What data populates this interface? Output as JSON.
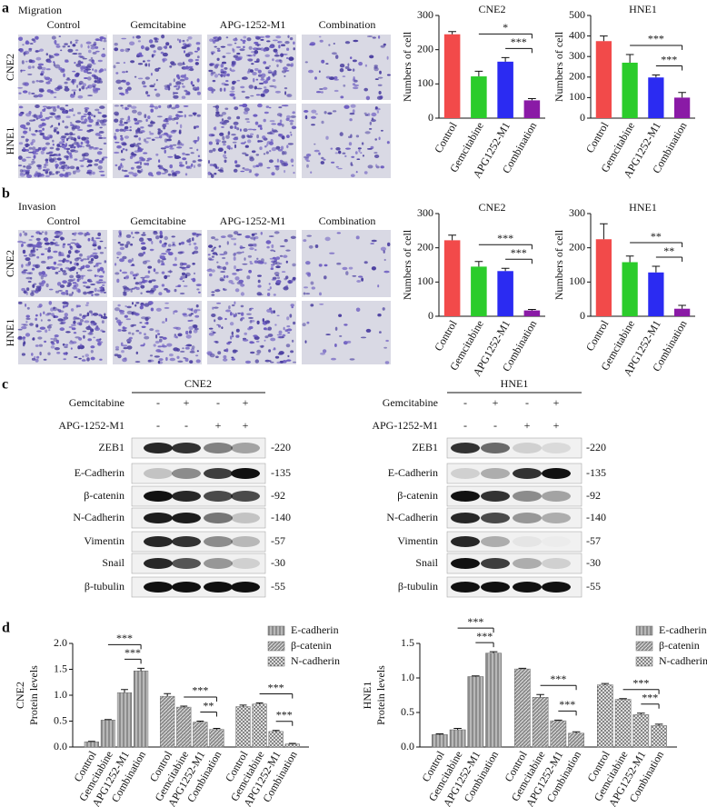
{
  "figure": {
    "panel_labels": [
      "a",
      "b",
      "c",
      "d"
    ],
    "migration": "Migration",
    "invasion": "Invasion",
    "image_columns": [
      "Control",
      "Gemcitabine",
      "APG-1252-M1",
      "Combination"
    ],
    "image_rows": [
      "CNE2",
      "HNE1"
    ],
    "blots": [
      {
        "title": "CNE2",
        "treatments": [
          {
            "name": "Gemcitabine",
            "signs": [
              "-",
              "+",
              "-",
              "+"
            ]
          },
          {
            "name": "APG-1252-M1",
            "signs": [
              "-",
              "-",
              "+",
              "+"
            ]
          }
        ],
        "proteins": [
          {
            "name": "ZEB1",
            "mw": "-220"
          },
          {
            "name": "E-Cadherin",
            "mw": "-135"
          },
          {
            "name": "β-catenin",
            "mw": "-92"
          },
          {
            "name": "N-Cadherin",
            "mw": "-140"
          },
          {
            "name": "Vimentin",
            "mw": "-57"
          },
          {
            "name": "Snail",
            "mw": "-30"
          },
          {
            "name": "β-tubulin",
            "mw": "-55"
          }
        ]
      },
      {
        "title": "HNE1",
        "treatments": [
          {
            "name": "Gemcitabine",
            "signs": [
              "-",
              "+",
              "-",
              "+"
            ]
          },
          {
            "name": "APG-1252-M1",
            "signs": [
              "-",
              "-",
              "+",
              "+"
            ]
          }
        ],
        "proteins": [
          {
            "name": "ZEB1",
            "mw": "-220"
          },
          {
            "name": "E-Cadherin",
            "mw": "-135"
          },
          {
            "name": "β-catenin",
            "mw": "-92"
          },
          {
            "name": "N-Cadherin",
            "mw": "-140"
          },
          {
            "name": "Vimentin",
            "mw": "-57"
          },
          {
            "name": "Snail",
            "mw": "-30"
          },
          {
            "name": "β-tubulin",
            "mw": "-55"
          }
        ]
      }
    ]
  },
  "chart_data": [
    {
      "type": "bar",
      "title": "CNE2",
      "ylabel": "Numbers of cell",
      "categories": [
        "Control",
        "Gemcitabine",
        "APG1252-M1",
        "Combination"
      ],
      "values": [
        245,
        122,
        165,
        52
      ],
      "errors": [
        8,
        15,
        12,
        5
      ],
      "colors": [
        "#f24a4a",
        "#2bcc2b",
        "#2b2bf2",
        "#8a1aa6"
      ],
      "ylim": [
        0,
        300
      ],
      "yticks": [
        0,
        100,
        200,
        300
      ],
      "annotations": [
        "*",
        "***"
      ]
    },
    {
      "type": "bar",
      "title": "HNE1",
      "ylabel": "Numbers of cell",
      "categories": [
        "Control",
        "Gemcitabine",
        "APG1252-M1",
        "Combination"
      ],
      "values": [
        375,
        270,
        198,
        100
      ],
      "errors": [
        25,
        40,
        12,
        25
      ],
      "colors": [
        "#f24a4a",
        "#2bcc2b",
        "#2b2bf2",
        "#8a1aa6"
      ],
      "ylim": [
        0,
        500
      ],
      "yticks": [
        0,
        100,
        200,
        300,
        400,
        500
      ],
      "annotations": [
        "***",
        "***"
      ]
    },
    {
      "type": "bar",
      "title": "CNE2",
      "ylabel": "Numbers of cell",
      "categories": [
        "Control",
        "Gemcitabine",
        "APG1252-M1",
        "Combination"
      ],
      "values": [
        222,
        145,
        132,
        17
      ],
      "errors": [
        15,
        15,
        8,
        3
      ],
      "colors": [
        "#f24a4a",
        "#2bcc2b",
        "#2b2bf2",
        "#8a1aa6"
      ],
      "ylim": [
        0,
        300
      ],
      "yticks": [
        0,
        100,
        200,
        300
      ],
      "annotations": [
        "***",
        "***"
      ]
    },
    {
      "type": "bar",
      "title": "HNE1",
      "ylabel": "Numbers of cell",
      "categories": [
        "Control",
        "Gemcitabine",
        "APG1252-M1",
        "Combination"
      ],
      "values": [
        225,
        158,
        128,
        22
      ],
      "errors": [
        45,
        18,
        18,
        10
      ],
      "colors": [
        "#f24a4a",
        "#2bcc2b",
        "#2b2bf2",
        "#8a1aa6"
      ],
      "ylim": [
        0,
        300
      ],
      "yticks": [
        0,
        100,
        200,
        300
      ],
      "annotations": [
        "**",
        "**"
      ]
    },
    {
      "type": "bar",
      "title": "CNE2",
      "ylabel": "Protein levels",
      "categories": [
        "Control",
        "Gemcitabine",
        "APG1252-M1",
        "Combination"
      ],
      "series": [
        {
          "name": "E-cadherin",
          "color": "#8c8c8c",
          "hatch": "vertical",
          "values": [
            0.1,
            0.52,
            1.05,
            1.47
          ],
          "errors": [
            0.01,
            0.01,
            0.06,
            0.05
          ],
          "annotations": [
            "***",
            "***"
          ]
        },
        {
          "name": "β-catenin",
          "color": "#8c8c8c",
          "hatch": "diagonal",
          "values": [
            0.98,
            0.77,
            0.48,
            0.34
          ],
          "errors": [
            0.05,
            0.02,
            0.02,
            0.02
          ],
          "annotations": [
            "***",
            "**"
          ]
        },
        {
          "name": "N-cadherin",
          "color": "#6a6a6a",
          "hatch": "cross",
          "values": [
            0.78,
            0.83,
            0.3,
            0.06
          ],
          "errors": [
            0.03,
            0.02,
            0.02,
            0.01
          ],
          "annotations": [
            "***",
            "***"
          ]
        }
      ],
      "ylim": [
        0,
        2
      ],
      "yticks": [
        {
          "value": 0,
          "label": "0.0"
        },
        0.5,
        {
          "value": 1,
          "label": "1.0"
        },
        1.5,
        {
          "value": 2,
          "label": "2.0"
        }
      ]
    },
    {
      "type": "bar",
      "title": "HNE1",
      "ylabel": "Protein levels",
      "categories": [
        "Control",
        "Gemcitabine",
        "APG1252-M1",
        "Combination"
      ],
      "series": [
        {
          "name": "E-cadherin",
          "color": "#8c8c8c",
          "hatch": "vertical",
          "values": [
            0.18,
            0.25,
            1.02,
            1.36
          ],
          "errors": [
            0.01,
            0.02,
            0.01,
            0.02
          ],
          "annotations": [
            "***",
            "***"
          ]
        },
        {
          "name": "β-catenin",
          "color": "#8c8c8c",
          "hatch": "diagonal",
          "values": [
            1.13,
            0.72,
            0.38,
            0.2
          ],
          "errors": [
            0.01,
            0.04,
            0.01,
            0.02
          ],
          "annotations": [
            "***",
            "***"
          ]
        },
        {
          "name": "N-cadherin",
          "color": "#6a6a6a",
          "hatch": "cross",
          "values": [
            0.9,
            0.69,
            0.47,
            0.31
          ],
          "errors": [
            0.02,
            0.01,
            0.02,
            0.02
          ],
          "annotations": [
            "***",
            "***"
          ]
        }
      ],
      "ylim": [
        0,
        1.5
      ],
      "yticks": [
        {
          "value": 0,
          "label": "0.0"
        },
        0.5,
        {
          "value": 1,
          "label": "1.0"
        },
        1.5
      ]
    }
  ]
}
